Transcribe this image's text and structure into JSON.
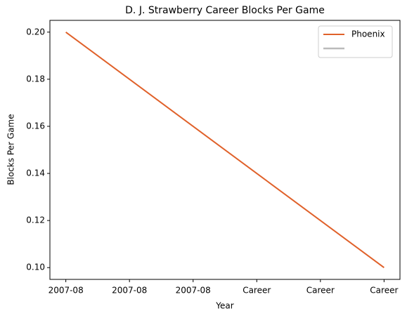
{
  "chart_data": {
    "type": "line",
    "title": "D. J. Strawberry Career Blocks Per Game",
    "xlabel": "Year",
    "ylabel": "Blocks Per Game",
    "categories": [
      "2007-08",
      "Career"
    ],
    "series": [
      {
        "name": "Phoenix",
        "color": "#e0612a",
        "values": [
          0.2,
          0.1
        ]
      }
    ],
    "xlim": [
      -0.05,
      1.05
    ],
    "xticks": [
      {
        "value": 0,
        "label": "2007-08"
      },
      {
        "value": 0.2,
        "label": "2007-08"
      },
      {
        "value": 0.4,
        "label": "2007-08"
      },
      {
        "value": 0.6,
        "label": "Career"
      },
      {
        "value": 0.8,
        "label": "Career"
      },
      {
        "value": 1,
        "label": "Career"
      }
    ],
    "ylim": [
      0.095,
      0.205
    ],
    "yticks": [
      {
        "value": 0.1,
        "label": "0.10"
      },
      {
        "value": 0.12,
        "label": "0.12"
      },
      {
        "value": 0.14,
        "label": "0.14"
      },
      {
        "value": 0.16,
        "label": "0.16"
      },
      {
        "value": 0.18,
        "label": "0.18"
      },
      {
        "value": 0.2,
        "label": "0.20"
      }
    ],
    "legend": "upper right"
  }
}
